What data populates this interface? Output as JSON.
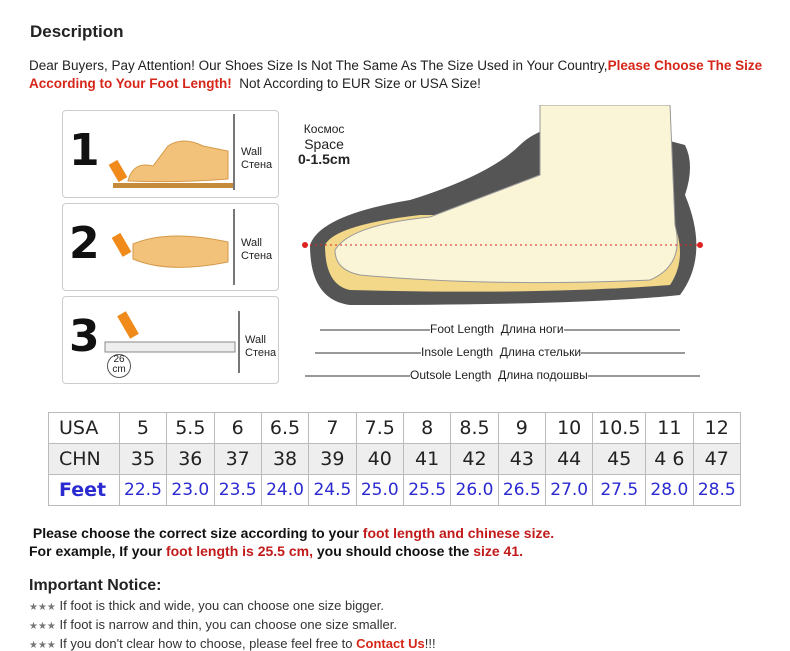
{
  "title": "Description",
  "intro": {
    "text1": "Dear Buyers, Pay Attention! Our Shoes Size Is Not The Same As The Size Used in Your Country,",
    "highlight": "Please Choose The Size According to Your Foot Length!",
    "text2": "  Not According to EUR Size or USA Size!"
  },
  "illustration": {
    "steps": [
      {
        "n": "1",
        "wall": "Wall",
        "wall_ru": "Стена"
      },
      {
        "n": "2",
        "wall": "Wall",
        "wall_ru": "Стена"
      },
      {
        "n": "3",
        "wall": "Wall",
        "wall_ru": "Стена",
        "ruler": "26",
        "ruler_unit": "cm"
      }
    ],
    "space_ru": "Космос",
    "space": "Space",
    "space_range": "0-1.5cm",
    "lengths": [
      {
        "en": "Foot Length",
        "ru": "Длина ноги"
      },
      {
        "en": "Insole Length",
        "ru": "Длина стельки"
      },
      {
        "en": "Outsole Length",
        "ru": "Длина подошвы"
      }
    ]
  },
  "size_table": {
    "rows": [
      {
        "label": "USA",
        "values": [
          "5",
          "5.5",
          "6",
          "6.5",
          "7",
          "7.5",
          "8",
          "8.5",
          "9",
          "10",
          "10.5",
          "11",
          "12"
        ]
      },
      {
        "label": "CHN",
        "values": [
          "35",
          "36",
          "37",
          "38",
          "39",
          "40",
          "41",
          "42",
          "43",
          "44",
          "45",
          "4 6",
          "47"
        ]
      },
      {
        "label": "Feet",
        "values": [
          "22.5",
          "23.0",
          "23.5",
          "24.0",
          "24.5",
          "25.0",
          "25.5",
          "26.0",
          "26.5",
          "27.0",
          "27.5",
          "28.0",
          "28.5"
        ]
      }
    ]
  },
  "guide": {
    "l1a": " Please choose the correct size according to your ",
    "l1b": "foot length and chinese size.",
    "l2a": "For example, If your ",
    "l2b": "foot length is 25.5 cm,",
    "l2c": " you should choose the ",
    "l2d": "size 41."
  },
  "notice": {
    "title": "Important Notice:",
    "stars": "★★★",
    "items": [
      " If foot is thick and wide, you can choose one size bigger.",
      " If foot is narrow and thin, you can choose one size smaller.",
      " If you don't clear how to choose, please feel free to "
    ],
    "contact": "Contact Us",
    "tail": "!!!"
  }
}
